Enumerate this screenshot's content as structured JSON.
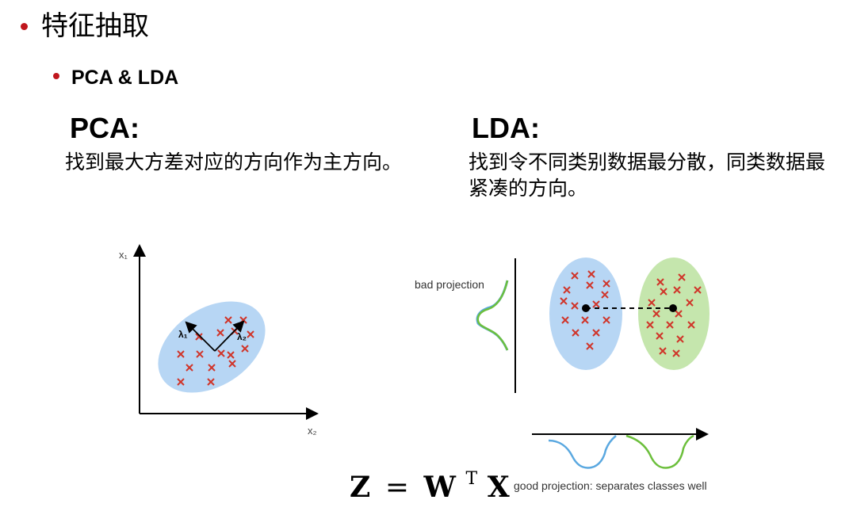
{
  "slide": {
    "title": "特征抽取",
    "subtitle": "PCA & LDA"
  },
  "pca": {
    "heading": "PCA:",
    "description": "找到最大方差对应的方向作为主方向。",
    "x_axis_label": "x₂",
    "y_axis_label": "x₁",
    "lambda1_label": "λ₁",
    "lambda2_label": "λ₂",
    "cloud_color": "#b7d6f4",
    "marker_color": "#d0352a"
  },
  "lda": {
    "heading": "LDA:",
    "description": "找到令不同类别数据最分散，同类数据最紧凑的方向。",
    "bad_projection_label": "bad projection",
    "good_projection_label": "good projection: separates classes well",
    "class1_color": "#b7d6f4",
    "class2_color": "#c5e6ad",
    "curve1_color": "#5aa8e0",
    "curve2_color": "#6cbf3c"
  },
  "formula": {
    "lhs": "Z",
    "equals": "=",
    "w": "W",
    "sup": "T",
    "x": "X"
  }
}
